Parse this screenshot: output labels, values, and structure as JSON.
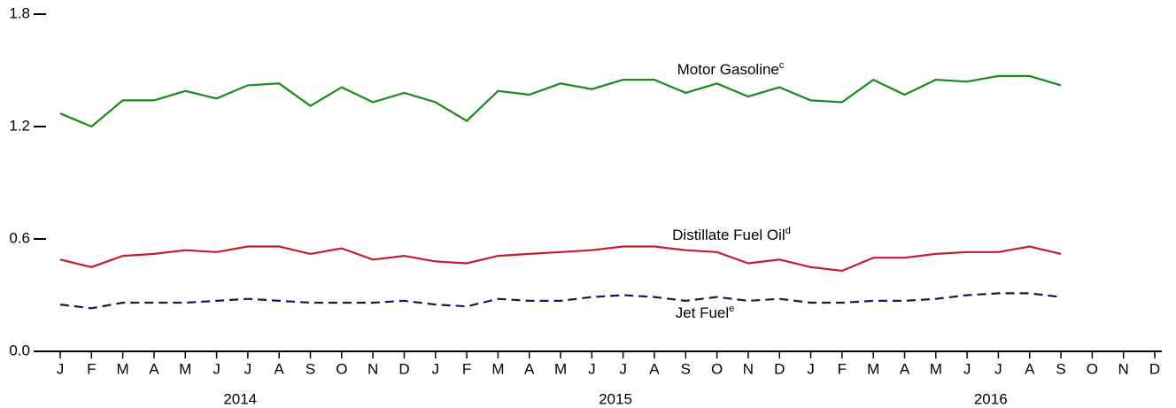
{
  "chart_data": {
    "type": "line",
    "categories": [
      "J",
      "F",
      "M",
      "A",
      "M",
      "J",
      "J",
      "A",
      "S",
      "O",
      "N",
      "D",
      "J",
      "F",
      "M",
      "A",
      "M",
      "J",
      "J",
      "A",
      "S",
      "O",
      "N",
      "D",
      "J",
      "F",
      "M",
      "A",
      "M",
      "J",
      "J",
      "A",
      "S",
      "O",
      "N",
      "D"
    ],
    "year_labels": [
      "2014",
      "2015",
      "2016"
    ],
    "series": [
      {
        "name": "Motor Gasoline",
        "note_mark": "c",
        "color": "#1a8a1a",
        "dash": false,
        "values": [
          1.27,
          1.2,
          1.34,
          1.34,
          1.39,
          1.35,
          1.42,
          1.43,
          1.31,
          1.41,
          1.33,
          1.38,
          1.33,
          1.23,
          1.39,
          1.37,
          1.43,
          1.4,
          1.45,
          1.45,
          1.38,
          1.43,
          1.36,
          1.41,
          1.34,
          1.33,
          1.45,
          1.37,
          1.45,
          1.44,
          1.47,
          1.47,
          1.42,
          null,
          null,
          null
        ]
      },
      {
        "name": "Distillate Fuel Oil",
        "note_mark": "d",
        "color": "#c0202a",
        "dash": false,
        "values": [
          0.49,
          0.45,
          0.51,
          0.52,
          0.54,
          0.53,
          0.56,
          0.56,
          0.52,
          0.55,
          0.49,
          0.51,
          0.48,
          0.47,
          0.51,
          0.52,
          0.53,
          0.54,
          0.56,
          0.56,
          0.54,
          0.53,
          0.47,
          0.49,
          0.45,
          0.43,
          0.5,
          0.5,
          0.52,
          0.53,
          0.53,
          0.56,
          0.52,
          null,
          null,
          null
        ]
      },
      {
        "name": "Jet Fuel",
        "note_mark": "e",
        "color": "#14195a",
        "dash": true,
        "values": [
          0.25,
          0.23,
          0.26,
          0.26,
          0.26,
          0.27,
          0.28,
          0.27,
          0.26,
          0.26,
          0.26,
          0.27,
          0.25,
          0.24,
          0.28,
          0.27,
          0.27,
          0.29,
          0.3,
          0.29,
          0.27,
          0.29,
          0.27,
          0.28,
          0.26,
          0.26,
          0.27,
          0.27,
          0.28,
          0.3,
          0.31,
          0.31,
          0.29,
          null,
          null,
          null
        ]
      }
    ],
    "ylim": [
      0,
      1.8
    ],
    "yticks": [
      {
        "value": 0,
        "label": "0.0"
      },
      0.6,
      1.2,
      1.8
    ]
  }
}
